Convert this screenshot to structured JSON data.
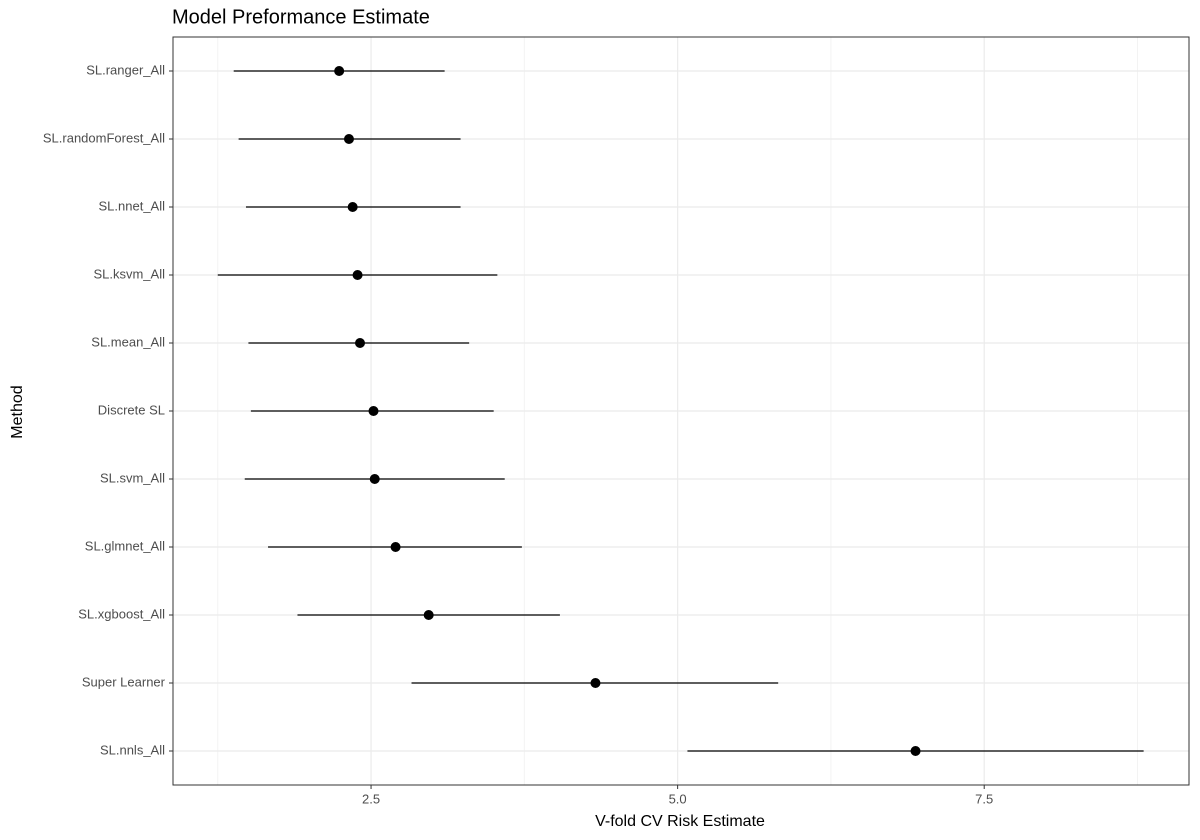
{
  "chart_data": {
    "type": "dot-whisker",
    "title": "Model Preformance Estimate",
    "x_label": "V-fold CV Risk Estimate",
    "y_label": "Method",
    "categories": [
      "SL.ranger_All",
      "SL.randomForest_All",
      "SL.nnet_All",
      "SL.ksvm_All",
      "SL.mean_All",
      "Discrete SL",
      "SL.svm_All",
      "SL.glmnet_All",
      "SL.xgboost_All",
      "Super Learner",
      "SL.nnls_All"
    ],
    "values": [
      2.24,
      2.32,
      2.35,
      2.39,
      2.41,
      2.52,
      2.53,
      2.7,
      2.97,
      4.33,
      6.94
    ],
    "lower": [
      1.38,
      1.42,
      1.48,
      1.25,
      1.5,
      1.52,
      1.47,
      1.66,
      1.9,
      2.83,
      5.08
    ],
    "upper": [
      3.1,
      3.23,
      3.23,
      3.53,
      3.3,
      3.5,
      3.59,
      3.73,
      4.04,
      5.82,
      8.8
    ],
    "color": "#000000",
    "xlim": [
      0.885,
      9.17
    ],
    "xticks": [
      2.5,
      {
        "value": 5,
        "label": "5.0"
      },
      7.5
    ],
    "x_minor_ticks": [
      1.25,
      3.75,
      6.25,
      8.75
    ],
    "grid": true
  }
}
